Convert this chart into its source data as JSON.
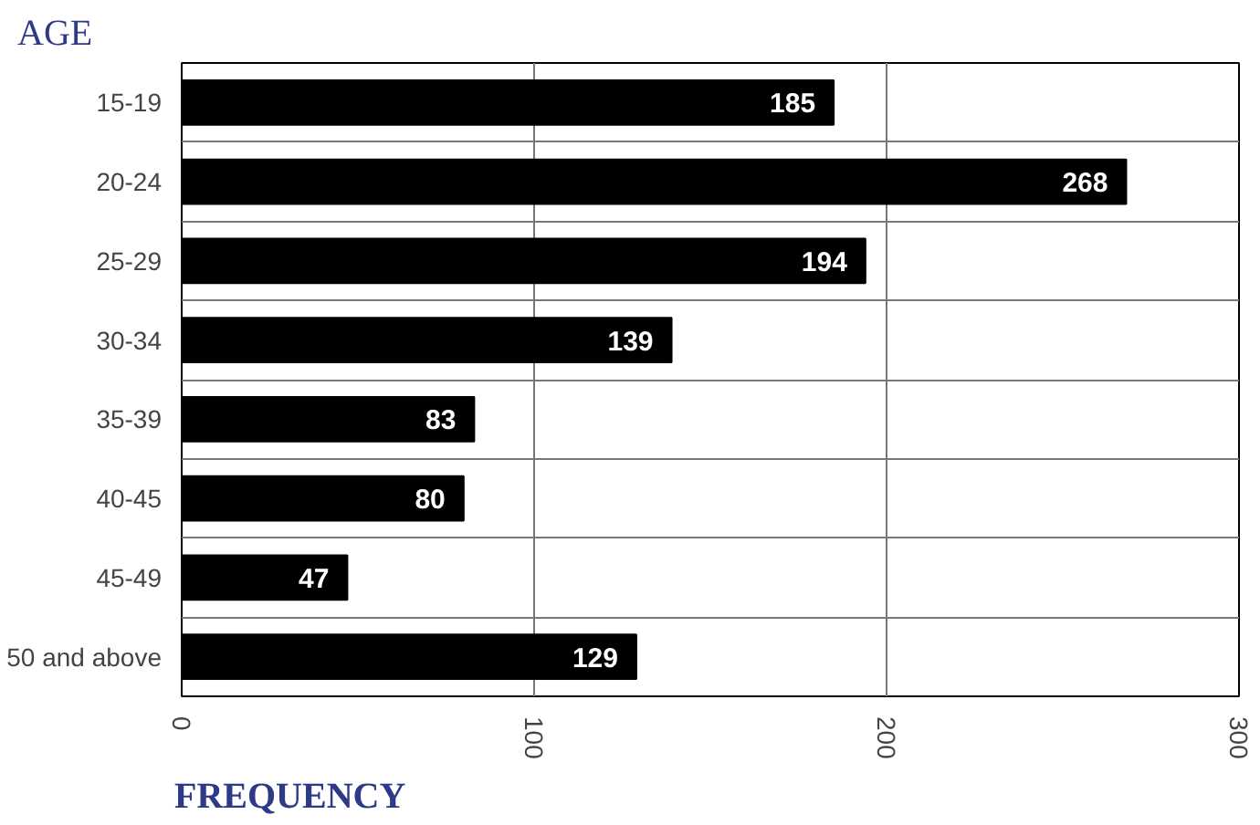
{
  "chart_data": {
    "type": "bar",
    "orientation": "horizontal",
    "ylabel": "AGE",
    "xlabel": "FREQUENCY",
    "categories": [
      "15-19",
      "20-24",
      "25-29",
      "30-34",
      "35-39",
      "40-45",
      "45-49",
      "50 and above"
    ],
    "values": [
      185,
      268,
      194,
      139,
      83,
      80,
      47,
      129
    ],
    "color": "#000000",
    "xlim": [
      0,
      300
    ],
    "xticks": [
      0,
      100,
      200,
      300
    ],
    "grid": true,
    "data_labels": true
  }
}
